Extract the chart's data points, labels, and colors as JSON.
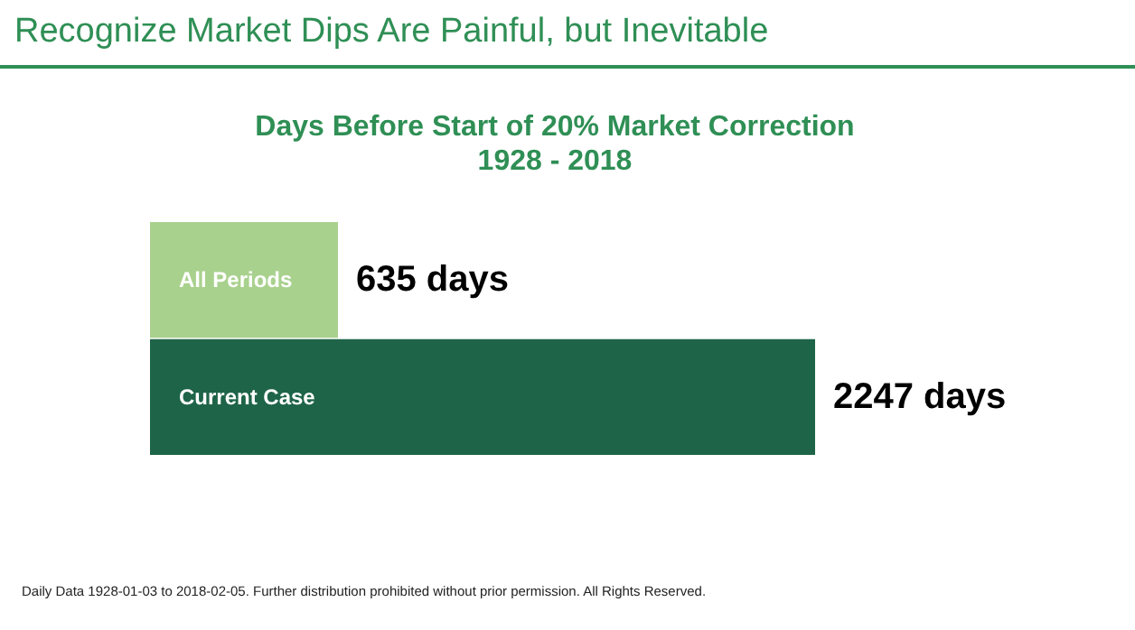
{
  "chart_data": {
    "type": "bar",
    "orientation": "horizontal",
    "title": "Recognize Market Dips Are Painful, but Inevitable",
    "subtitle": "Days Before Start of 20% Market Correction\n1928 - 2018",
    "categories": [
      "All Periods",
      "Current Case"
    ],
    "values": [
      635,
      2247
    ],
    "colors": [
      "#a9d18e",
      "#1e6448"
    ],
    "value_labels": [
      "635 days",
      "2247 days"
    ],
    "annotations": [
      "Daily Data 1928-01-03 to 2018-02-05. Further distribution prohibited without prior permission. All Rights Reserved."
    ]
  }
}
